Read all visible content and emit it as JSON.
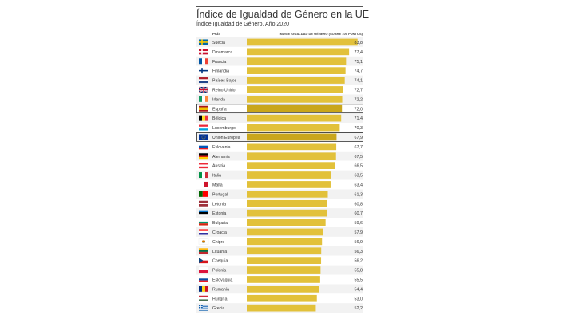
{
  "title": "Índice de Igualdad de Género en la UE",
  "subtitle": "Índice Igualdad de Género. Año 2020",
  "chart_data": {
    "type": "bar",
    "orientation": "horizontal",
    "column_headers": {
      "category": "PAÍS",
      "value": "ÍNDICE IGUALDAD DE GÉNERO (SOBRE 100 PUNTOS)"
    },
    "categories": [
      "Suecia",
      "Dinamarca",
      "Francia",
      "Finlandia",
      "Países Bajos",
      "Reino Unido",
      "Irlanda",
      "España",
      "Bélgica",
      "Luxemburgo",
      "Unión Europea",
      "Eslovenia",
      "Alemania",
      "Austria",
      "Italia",
      "Malta",
      "Portugal",
      "Letonia",
      "Estonia",
      "Bulgaria",
      "Croacia",
      "Chipre",
      "Lituania",
      "Chequia",
      "Polonia",
      "Eslovaquia",
      "Rumanía",
      "Hungría",
      "Grecia"
    ],
    "values": [
      83.8,
      77.4,
      75.1,
      74.7,
      74.1,
      72.7,
      72.2,
      72.0,
      71.4,
      70.3,
      67.9,
      67.7,
      67.5,
      66.5,
      63.5,
      63.4,
      61.3,
      60.8,
      60.7,
      59.6,
      57.9,
      56.9,
      56.3,
      56.2,
      55.8,
      55.5,
      54.4,
      53.0,
      52.2
    ],
    "value_labels": [
      "83,8",
      "77,4",
      "75,1",
      "74,7",
      "74,1",
      "72,7",
      "72,2",
      "72,0",
      "71,4",
      "70,3",
      "67,9",
      "67,7",
      "67,5",
      "66,5",
      "63,5",
      "63,4",
      "61,3",
      "60,8",
      "60,7",
      "59,6",
      "57,9",
      "56,9",
      "56,3",
      "56,2",
      "55,8",
      "55,5",
      "54,4",
      "53,0",
      "52,2"
    ],
    "highlighted": [
      "España",
      "Unión Europea"
    ],
    "xlim": [
      0,
      90
    ],
    "colors": {
      "bar": "#e2c13a",
      "bar_highlight": "#c9a61b",
      "row_even": "#f2f2f2",
      "row_odd": "#ffffff",
      "highlight_border": "#222222"
    },
    "flag_icons": [
      "flag-sweden-icon",
      "flag-denmark-icon",
      "flag-france-icon",
      "flag-finland-icon",
      "flag-netherlands-icon",
      "flag-uk-icon",
      "flag-ireland-icon",
      "flag-spain-icon",
      "flag-belgium-icon",
      "flag-luxembourg-icon",
      "flag-eu-icon",
      "flag-slovenia-icon",
      "flag-germany-icon",
      "flag-austria-icon",
      "flag-italy-icon",
      "flag-malta-icon",
      "flag-portugal-icon",
      "flag-latvia-icon",
      "flag-estonia-icon",
      "flag-bulgaria-icon",
      "flag-croatia-icon",
      "flag-cyprus-icon",
      "flag-lithuania-icon",
      "flag-czechia-icon",
      "flag-poland-icon",
      "flag-slovakia-icon",
      "flag-romania-icon",
      "flag-hungary-icon",
      "flag-greece-icon"
    ]
  }
}
